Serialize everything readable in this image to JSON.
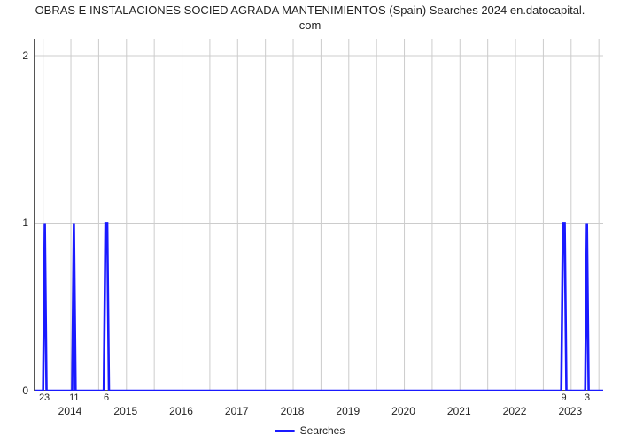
{
  "chart": {
    "type": "line",
    "title": "OBRAS E INSTALACIONES SOCIED AGRADA MANTENIMIENTOS (Spain) Searches 2024 en.datocapital.\ncom",
    "title_fontsize": 13,
    "background_color": "#ffffff",
    "grid_color": "#cccccc",
    "axis_color": "#555555",
    "line_color": "#1a1aff",
    "line_width": 2.6,
    "xlim": [
      0,
      133
    ],
    "ylim": [
      0,
      2.1
    ],
    "ytick_positions": [
      0,
      1,
      2
    ],
    "ytick_labels": [
      "0",
      "1",
      "2"
    ],
    "xtick_positions": [
      8.5,
      21.5,
      34.5,
      47.5,
      60.5,
      73.5,
      86.5,
      99.5,
      112.5,
      125.5
    ],
    "xtick_labels": [
      "2014",
      "2015",
      "2016",
      "2017",
      "2018",
      "2019",
      "2020",
      "2021",
      "2022",
      "2023"
    ],
    "grid_xlines": [
      2,
      8.5,
      15,
      21.5,
      28,
      34.5,
      41,
      47.5,
      54,
      60.5,
      67,
      73.5,
      80,
      86.5,
      93,
      99.5,
      106,
      112.5,
      119,
      125.5,
      132
    ],
    "value_annotations": [
      {
        "x": 2.5,
        "label": "23"
      },
      {
        "x": 9.5,
        "label": "11"
      },
      {
        "x": 17.0,
        "label": "6"
      },
      {
        "x": 124.0,
        "label": "9"
      },
      {
        "x": 129.5,
        "label": "3"
      }
    ],
    "series": [
      {
        "name": "Searches",
        "points": [
          [
            0,
            0
          ],
          [
            2,
            0
          ],
          [
            2.4,
            1
          ],
          [
            2.8,
            0
          ],
          [
            8.8,
            0
          ],
          [
            9.2,
            1
          ],
          [
            9.6,
            0
          ],
          [
            16.2,
            0
          ],
          [
            16.6,
            1
          ],
          [
            17.0,
            1
          ],
          [
            17.4,
            0
          ],
          [
            123.2,
            0
          ],
          [
            123.6,
            1
          ],
          [
            124.0,
            1
          ],
          [
            124.4,
            0
          ],
          [
            128.8,
            0
          ],
          [
            129.2,
            1
          ],
          [
            129.6,
            0
          ],
          [
            133,
            0
          ]
        ]
      }
    ],
    "legend_label": "Searches"
  }
}
